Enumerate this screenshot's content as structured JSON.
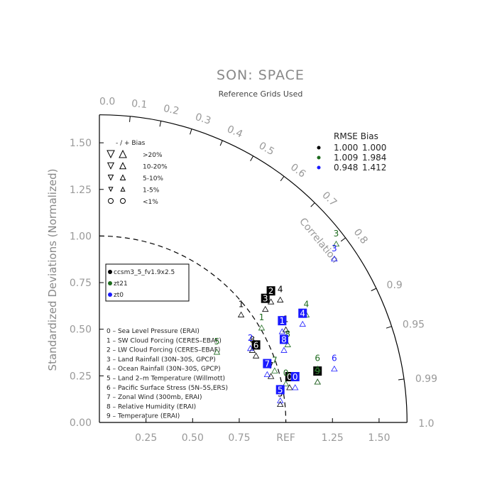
{
  "chart_data": {
    "type": "scatter",
    "title": "SON: SPACE",
    "subtitle": "Reference Grids Used",
    "ylabel": "Standardized Deviations (Normalized)",
    "corr_label": "Correlation",
    "ref_label": "REF",
    "x_ticks": [
      "0.25",
      "0.50",
      "0.75",
      "1.25",
      "1.50"
    ],
    "y_ticks": [
      "0.00",
      "0.25",
      "0.50",
      "0.75",
      "1.00",
      "1.25",
      "1.50"
    ],
    "corr_ticks": [
      "0.0",
      "0.1",
      "0.2",
      "0.3",
      "0.4",
      "0.5",
      "0.6",
      "0.7",
      "0.8",
      "0.9",
      "0.95",
      "0.99",
      "1.0"
    ],
    "bias_legend": {
      "header": "-  /  +    Bias",
      "rows": [
        ">20%",
        "10-20%",
        "5-10%",
        "1-5%",
        "<1%"
      ]
    },
    "rmse_table": {
      "header": "RMSE  Bias",
      "rows": [
        {
          "rmse": "1.000",
          "bias": "1.000",
          "color": "#000000"
        },
        {
          "rmse": "1.009",
          "bias": "1.984",
          "color": "#1e6b1e"
        },
        {
          "rmse": "0.948",
          "bias": "1.412",
          "color": "#1a1aff"
        }
      ]
    },
    "series": [
      {
        "name": "ccsm3_5_fv1.9x2.5",
        "color": "#000000"
      },
      {
        "name": "zt21",
        "color": "#1e6b1e"
      },
      {
        "name": "zt0",
        "color": "#1a1aff"
      }
    ],
    "variables": [
      "0 – Sea Level Pressure (ERAI)",
      "1 – SW Cloud Forcing (CERES–EBAF)",
      "2 – LW Cloud Forcing (CERES–EBAF)",
      "3 – Land Rainfall (30N–30S, GPCP)",
      "4 – Ocean Rainfall (30N–30S, GPCP)",
      "5 – Land 2–m Temperature (Willmott)",
      "6 – Pacific Surface Stress (5N–5S,ERS)",
      "7 – Zonal Wind (300mb, ERAI)",
      "8 – Relative Humidity (ERAI)",
      "9 – Temperature (ERAI)"
    ],
    "points": [
      {
        "s": 0,
        "v": "0",
        "x": 1.02,
        "y": 0.24,
        "boxed": true
      },
      {
        "s": 0,
        "v": "1",
        "x": 1.0,
        "y": 0.55,
        "boxed": false
      },
      {
        "s": 0,
        "v": "2",
        "x": 0.92,
        "y": 0.7,
        "boxed": true
      },
      {
        "s": 0,
        "v": "3",
        "x": 0.89,
        "y": 0.66,
        "boxed": true
      },
      {
        "s": 0,
        "v": "4",
        "x": 0.97,
        "y": 0.71,
        "boxed": false
      },
      {
        "s": 0,
        "v": "5",
        "x": 0.97,
        "y": 0.15,
        "boxed": false
      },
      {
        "s": 0,
        "v": "6",
        "x": 0.84,
        "y": 0.41,
        "boxed": true
      },
      {
        "s": 0,
        "v": "7",
        "x": 0.92,
        "y": 0.3,
        "boxed": false
      },
      {
        "s": 0,
        "v": "8",
        "x": 0.82,
        "y": 0.44,
        "boxed": false
      },
      {
        "s": 0,
        "v": "9",
        "x": 1.17,
        "y": 0.27,
        "boxed": true
      },
      {
        "s": 0,
        "v": "1",
        "x": 0.76,
        "y": 0.63,
        "boxed": false
      },
      {
        "s": 1,
        "v": "1",
        "x": 0.87,
        "y": 0.56,
        "boxed": false
      },
      {
        "s": 1,
        "v": "3",
        "x": 1.27,
        "y": 1.01,
        "boxed": false
      },
      {
        "s": 1,
        "v": "4",
        "x": 1.11,
        "y": 0.63,
        "boxed": false
      },
      {
        "s": 1,
        "v": "5",
        "x": 0.63,
        "y": 0.43,
        "boxed": false
      },
      {
        "s": 1,
        "v": "6",
        "x": 1.17,
        "y": 0.34,
        "boxed": false
      },
      {
        "s": 1,
        "v": "7",
        "x": 0.94,
        "y": 0.33,
        "boxed": false
      },
      {
        "s": 1,
        "v": "8",
        "x": 1.01,
        "y": 0.47,
        "boxed": false
      },
      {
        "s": 1,
        "v": "0",
        "x": 1.0,
        "y": 0.26,
        "boxed": false
      },
      {
        "s": 1,
        "v": "9",
        "x": 1.17,
        "y": 0.27,
        "boxed": false
      },
      {
        "s": 2,
        "v": "0",
        "x": 1.05,
        "y": 0.24,
        "boxed": true
      },
      {
        "s": 2,
        "v": "1",
        "x": 0.98,
        "y": 0.54,
        "boxed": true
      },
      {
        "s": 2,
        "v": "3",
        "x": 1.26,
        "y": 0.93,
        "boxed": false
      },
      {
        "s": 2,
        "v": "4",
        "x": 1.09,
        "y": 0.58,
        "boxed": true
      },
      {
        "s": 2,
        "v": "5",
        "x": 0.97,
        "y": 0.17,
        "boxed": true
      },
      {
        "s": 2,
        "v": "6",
        "x": 1.26,
        "y": 0.34,
        "boxed": false
      },
      {
        "s": 2,
        "v": "7",
        "x": 0.9,
        "y": 0.31,
        "boxed": true
      },
      {
        "s": 2,
        "v": "8",
        "x": 0.99,
        "y": 0.44,
        "boxed": true
      },
      {
        "s": 2,
        "v": "2",
        "x": 0.81,
        "y": 0.45,
        "boxed": false
      }
    ]
  }
}
